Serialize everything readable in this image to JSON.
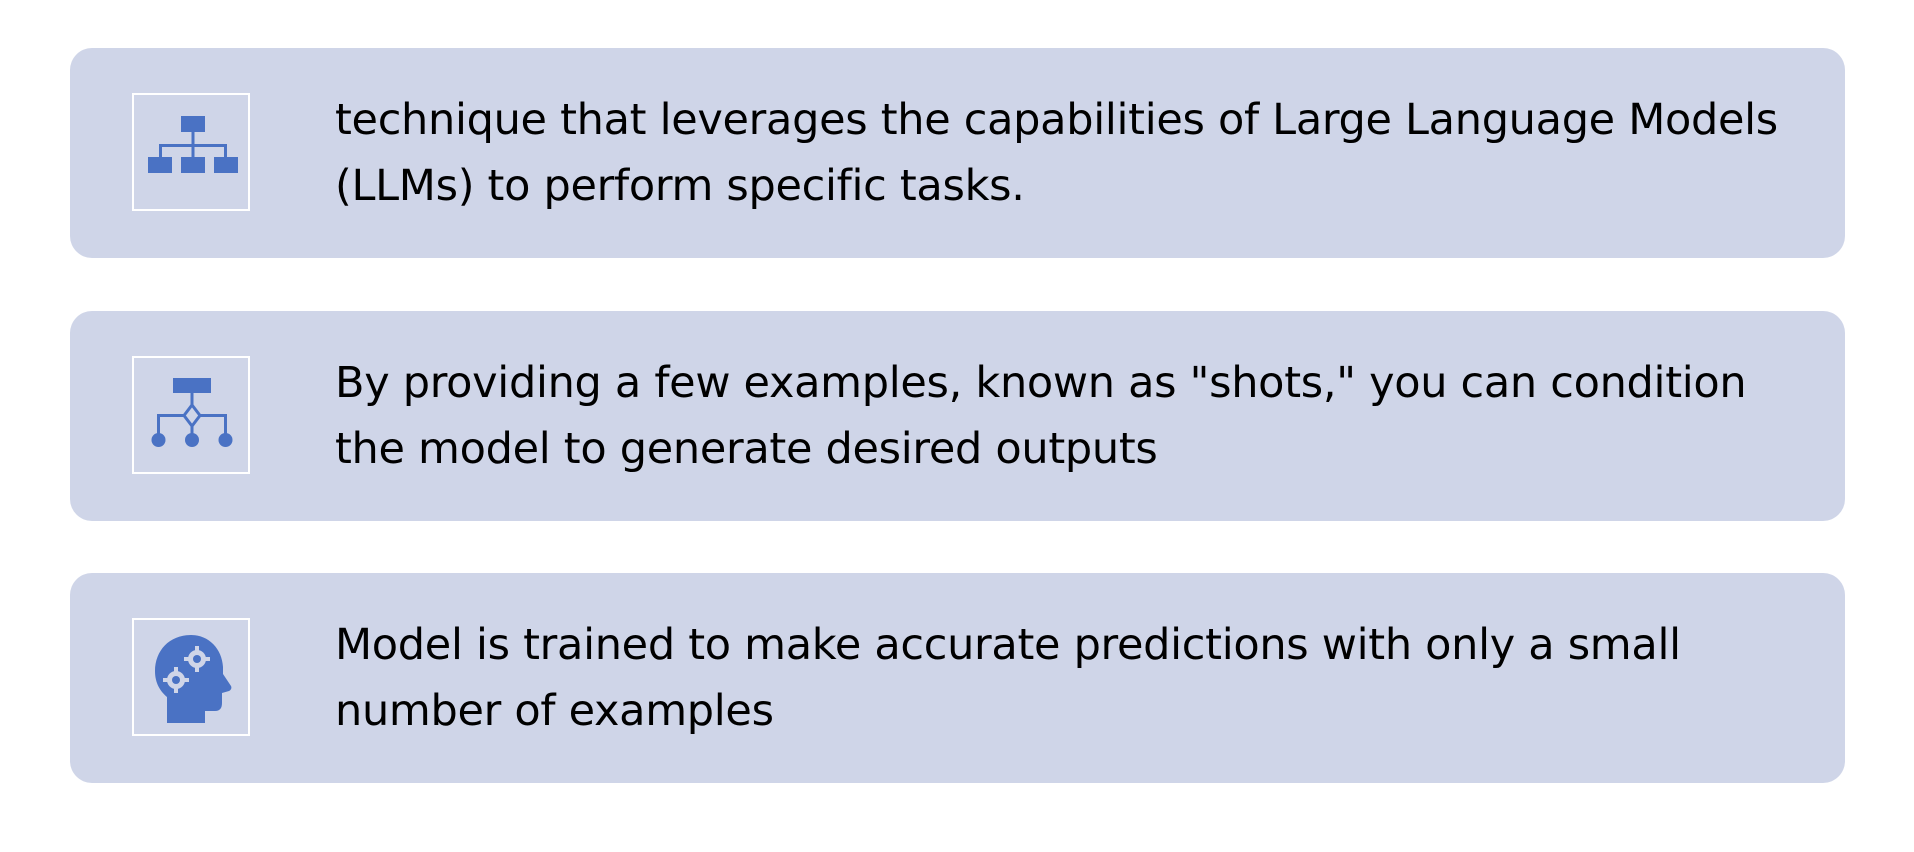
{
  "colors": {
    "card_background": "#cfd5e8",
    "icon_fill": "#4a72c4",
    "icon_frame": "#ffffff",
    "text": "#000000"
  },
  "items": [
    {
      "icon": "hierarchy-org-chart-icon",
      "text": "technique that leverages the capabilities of Large Language Models (LLMs) to perform specific tasks."
    },
    {
      "icon": "decision-tree-icon",
      "text": "By providing a few examples, known as \"shots,\" you can condition the model to generate desired outputs"
    },
    {
      "icon": "head-with-gears-icon",
      "text": "Model is trained to make accurate predictions with only a small number of examples"
    }
  ]
}
